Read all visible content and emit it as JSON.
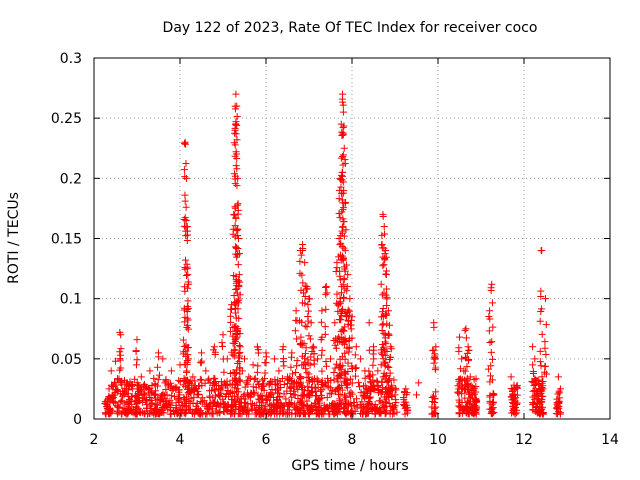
{
  "chart_data": {
    "type": "scatter",
    "title": "Day 122 of 2023, Rate Of TEC Index for receiver coco",
    "xlabel": "GPS time / hours",
    "ylabel": "ROTI / TECUs",
    "xlim": [
      2,
      14
    ],
    "ylim": [
      0,
      0.3
    ],
    "xticks": [
      "2",
      "4",
      "6",
      "8",
      "10",
      "12",
      "14"
    ],
    "yticks": [
      "0",
      "0.05",
      "0.1",
      "0.15",
      "0.2",
      "0.25",
      "0.3"
    ],
    "grid": true,
    "legend": "none",
    "marker": "+",
    "color": "#ff0000",
    "series": [
      {
        "x": [
          2.3,
          2.35,
          2.4,
          2.45,
          2.5,
          2.55,
          2.6,
          2.62,
          2.65,
          2.7,
          2.75,
          2.8,
          2.9,
          3.0,
          3.05,
          3.1,
          3.2,
          3.3,
          3.4,
          3.5,
          3.6,
          3.65,
          3.7,
          3.8,
          3.9,
          4.0,
          4.1,
          4.12,
          4.15,
          4.17,
          4.18,
          4.2,
          4.22,
          4.3,
          4.4,
          4.5,
          4.6,
          4.7,
          4.8,
          4.9,
          5.0,
          5.1,
          5.2,
          5.25,
          5.28,
          5.3,
          5.32,
          5.34,
          5.36,
          5.38,
          5.4,
          5.45,
          5.5,
          5.6,
          5.7,
          5.8,
          5.9,
          6.0,
          6.1,
          6.2,
          6.3,
          6.4,
          6.5,
          6.6,
          6.7,
          6.8,
          6.85,
          6.9,
          6.95,
          7.0,
          7.05,
          7.1,
          7.2,
          7.3,
          7.4,
          7.5,
          7.6,
          7.65,
          7.7,
          7.72,
          7.75,
          7.78,
          7.8,
          7.82,
          7.85,
          7.9,
          7.95,
          8.0,
          8.1,
          8.2,
          8.3,
          8.4,
          8.5,
          8.6,
          8.7,
          8.72,
          8.75,
          8.78,
          8.8,
          8.85,
          8.9,
          9.0,
          9.2,
          9.25,
          9.5,
          9.55,
          9.9,
          9.95,
          10.5,
          10.55,
          10.6,
          10.65,
          10.7,
          10.75,
          10.8,
          10.9,
          11.2,
          11.25,
          11.3,
          11.7,
          11.75,
          11.8,
          12.2,
          12.25,
          12.3,
          12.35,
          12.4,
          12.5,
          12.8,
          12.85
        ],
        "y": [
          0.012,
          0.025,
          0.04,
          0.018,
          0.048,
          0.01,
          0.072,
          0.07,
          0.015,
          0.02,
          0.03,
          0.012,
          0.025,
          0.066,
          0.02,
          0.035,
          0.015,
          0.04,
          0.02,
          0.055,
          0.05,
          0.03,
          0.02,
          0.04,
          0.025,
          0.045,
          0.092,
          0.23,
          0.2,
          0.16,
          0.12,
          0.05,
          0.03,
          0.035,
          0.02,
          0.055,
          0.04,
          0.03,
          0.06,
          0.025,
          0.07,
          0.05,
          0.095,
          0.17,
          0.24,
          0.27,
          0.26,
          0.2,
          0.15,
          0.12,
          0.06,
          0.04,
          0.05,
          0.035,
          0.045,
          0.06,
          0.025,
          0.055,
          0.03,
          0.05,
          0.04,
          0.06,
          0.035,
          0.055,
          0.09,
          0.14,
          0.145,
          0.13,
          0.11,
          0.1,
          0.08,
          0.06,
          0.05,
          0.09,
          0.11,
          0.05,
          0.08,
          0.13,
          0.15,
          0.2,
          0.245,
          0.27,
          0.255,
          0.225,
          0.18,
          0.12,
          0.1,
          0.085,
          0.06,
          0.05,
          0.04,
          0.08,
          0.06,
          0.04,
          0.145,
          0.17,
          0.16,
          0.14,
          0.12,
          0.09,
          0.06,
          0.02,
          0.012,
          0.025,
          0.02,
          0.03,
          0.08,
          0.06,
          0.068,
          0.05,
          0.04,
          0.075,
          0.06,
          0.035,
          0.02,
          0.015,
          0.09,
          0.112,
          0.02,
          0.035,
          0.02,
          0.015,
          0.06,
          0.05,
          0.02,
          0.015,
          0.14,
          0.1,
          0.035,
          0.025
        ]
      }
    ],
    "background_cloud": {
      "segments": [
        {
          "x0": 2.25,
          "x1": 9.05,
          "ymax": 0.03,
          "density": 1100
        },
        {
          "x0": 9.2,
          "x1": 9.3,
          "ymax": 0.02,
          "density": 20
        },
        {
          "x0": 9.85,
          "x1": 9.95,
          "ymax": 0.02,
          "density": 20
        },
        {
          "x0": 10.45,
          "x1": 10.9,
          "ymax": 0.03,
          "density": 110
        },
        {
          "x0": 11.2,
          "x1": 11.3,
          "ymax": 0.02,
          "density": 25
        },
        {
          "x0": 11.7,
          "x1": 11.85,
          "ymax": 0.025,
          "density": 40
        },
        {
          "x0": 12.2,
          "x1": 12.45,
          "ymax": 0.03,
          "density": 80
        },
        {
          "x0": 12.75,
          "x1": 12.85,
          "ymax": 0.02,
          "density": 25
        }
      ]
    }
  }
}
